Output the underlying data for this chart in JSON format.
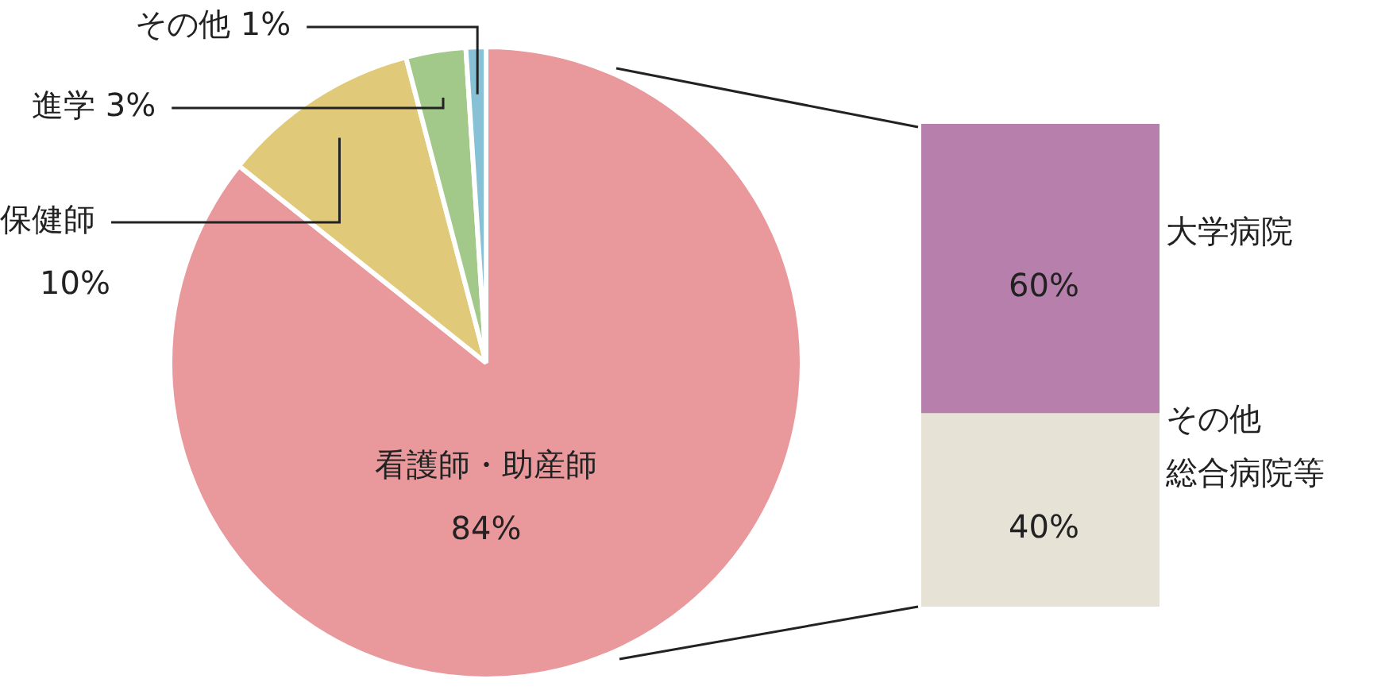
{
  "chart_data": [
    {
      "type": "pie",
      "categories": [
        "看護師・助産師",
        "保健師",
        "進学",
        "その他"
      ],
      "values": [
        84,
        10,
        3,
        1
      ],
      "colors": [
        "#e9989c",
        "#e0c978",
        "#a2c88a",
        "#86c1d6"
      ],
      "value_labels": [
        "84%",
        "10%",
        "3%",
        "1%"
      ],
      "legend": false
    },
    {
      "type": "bar",
      "stacked": true,
      "categories": [
        null
      ],
      "legend": false,
      "series": [
        {
          "name": "その他総合病院等",
          "color": "#e6e3d6",
          "values": [
            40
          ],
          "value_labels": [
            "40%"
          ]
        },
        {
          "name": "大学病院",
          "color": "#b77fab",
          "values": [
            60
          ],
          "value_labels": [
            "60%"
          ]
        }
      ]
    }
  ]
}
